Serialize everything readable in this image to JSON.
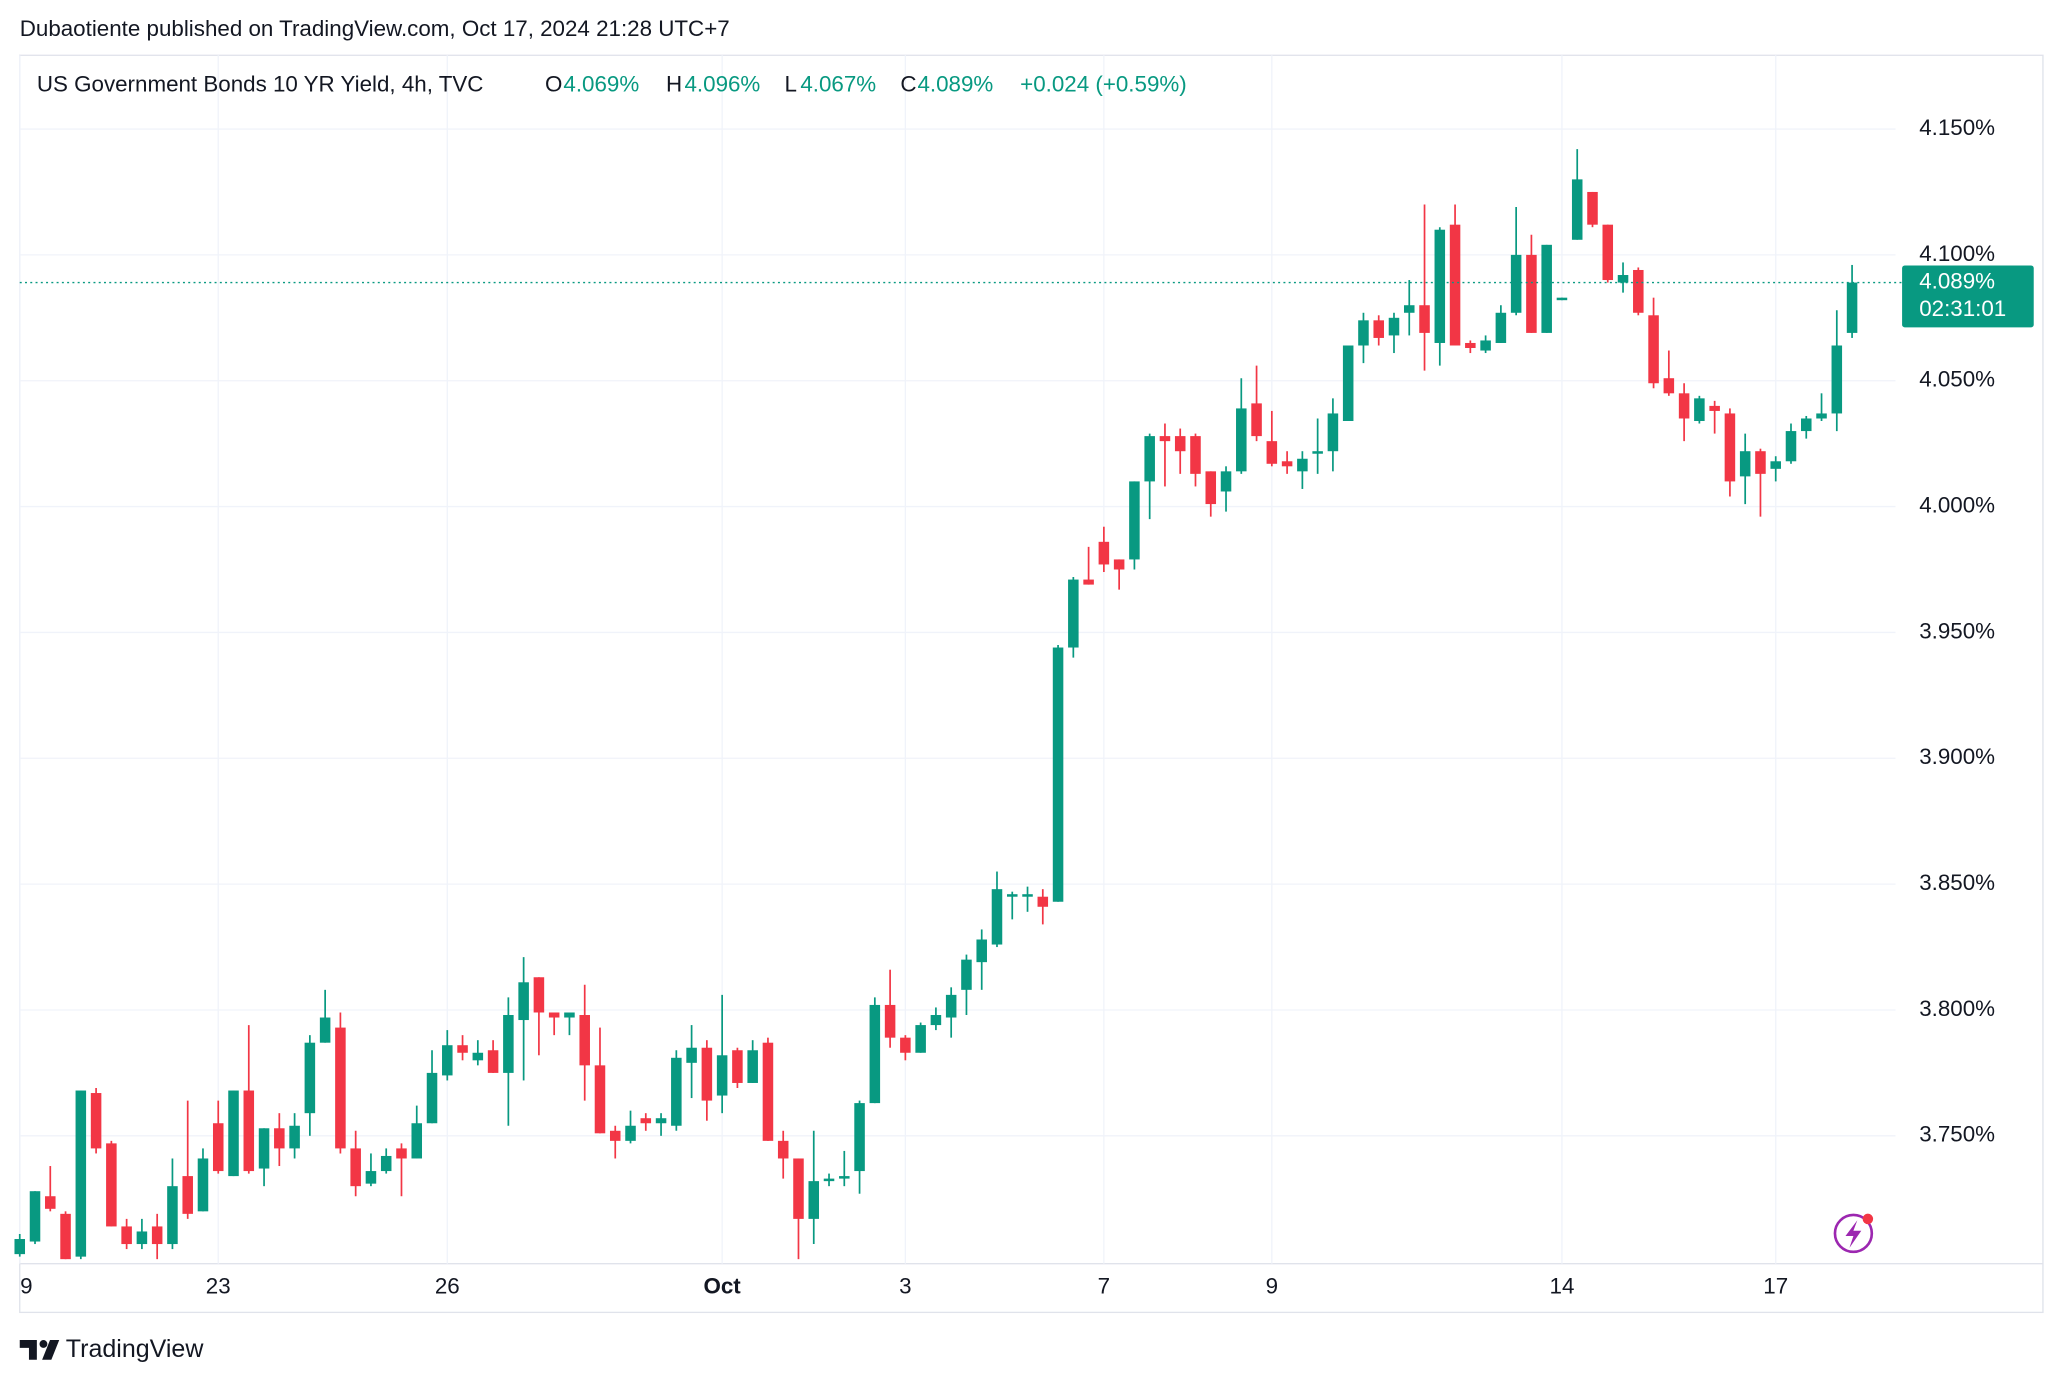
{
  "published": "Dubaotiente published on TradingView.com, Oct 17, 2024 21:28 UTC+7",
  "footer_brand": "TradingView",
  "chart_data": {
    "type": "candlestick",
    "title": "US Government Bonds 10 YR Yield, 4h, TVC",
    "ohlc_legend": [
      {
        "key": "O",
        "text": "4.069%"
      },
      {
        "key": "H",
        "text": "4.096%"
      },
      {
        "key": "L",
        "text": "4.067%"
      },
      {
        "key": "C",
        "text": "4.089%"
      }
    ],
    "change": "+0.024 (+0.59%)",
    "last_price_label": "4.089%",
    "countdown": "02:31:01",
    "up_color": "#089981",
    "down_color": "#f23645",
    "grid": true,
    "ylim": [
      3.6992,
      4.1793
    ],
    "yticks": [
      {
        "value": 3.75,
        "label": "3.750%"
      },
      {
        "value": 3.8,
        "label": "3.800%"
      },
      {
        "value": 3.85,
        "label": "3.850%"
      },
      {
        "value": 3.9,
        "label": "3.900%"
      },
      {
        "value": 3.95,
        "label": "3.950%"
      },
      {
        "value": 4.0,
        "label": "4.000%"
      },
      {
        "value": 4.05,
        "label": "4.050%"
      },
      {
        "value": 4.1,
        "label": "4.100%"
      },
      {
        "value": 4.15,
        "label": "4.150%"
      }
    ],
    "categories": [
      "9",
      null,
      null,
      null,
      null,
      null,
      null,
      null,
      null,
      null,
      null,
      null,
      null,
      "23",
      null,
      null,
      null,
      null,
      null,
      null,
      null,
      null,
      null,
      null,
      null,
      null,
      null,
      null,
      "26",
      null,
      null,
      null,
      null,
      null,
      null,
      null,
      null,
      null,
      null,
      null,
      null,
      null,
      null,
      null,
      null,
      null,
      "Oct",
      null,
      null,
      null,
      null,
      null,
      null,
      null,
      null,
      null,
      null,
      null,
      "3",
      null,
      null,
      null,
      null,
      null,
      null,
      null,
      null,
      null,
      null,
      null,
      null,
      "7",
      null,
      null,
      null,
      null,
      null,
      null,
      null,
      null,
      null,
      null,
      "9",
      null,
      null,
      null,
      null,
      null,
      null,
      null,
      null,
      null,
      null,
      null,
      null,
      null,
      null,
      null,
      null,
      null,
      null,
      "14",
      null,
      null,
      null,
      null,
      null,
      null,
      null,
      null,
      null,
      null,
      null,
      null,
      null,
      "17",
      null,
      null,
      null,
      null,
      null
    ],
    "open": [
      3.703,
      3.708,
      3.726,
      3.719,
      3.702,
      3.767,
      3.747,
      3.714,
      3.707,
      3.714,
      3.707,
      3.734,
      3.72,
      3.755,
      3.734,
      3.768,
      3.737,
      3.753,
      3.745,
      3.759,
      3.787,
      3.793,
      3.745,
      3.731,
      3.736,
      3.745,
      3.741,
      3.755,
      3.774,
      3.786,
      3.78,
      3.784,
      3.775,
      3.796,
      3.813,
      3.799,
      3.797,
      3.798,
      3.778,
      3.752,
      3.748,
      3.757,
      3.755,
      3.754,
      3.779,
      3.785,
      3.766,
      3.784,
      3.771,
      3.787,
      3.748,
      3.741,
      3.717,
      3.732,
      3.733,
      3.736,
      3.763,
      3.802,
      3.789,
      3.783,
      3.794,
      3.797,
      3.808,
      3.819,
      3.826,
      3.845,
      3.845,
      3.845,
      3.843,
      3.944,
      3.971,
      3.986,
      3.979,
      3.979,
      4.01,
      4.028,
      4.028,
      4.028,
      4.014,
      4.006,
      4.014,
      4.041,
      4.026,
      4.018,
      4.014,
      4.021,
      4.022,
      4.034,
      4.064,
      4.074,
      4.068,
      4.077,
      4.08,
      4.065,
      4.112,
      4.065,
      4.062,
      4.065,
      4.077,
      4.1,
      4.069,
      4.082,
      4.106,
      4.125,
      4.112,
      4.089,
      4.094,
      4.076,
      4.051,
      4.045,
      4.034,
      4.04,
      4.037,
      4.012,
      4.022,
      4.015,
      4.018,
      4.03,
      4.035,
      4.037,
      4.069
    ],
    "high": [
      3.711,
      3.728,
      3.738,
      3.72,
      3.768,
      3.769,
      3.748,
      3.717,
      3.717,
      3.719,
      3.741,
      3.764,
      3.745,
      3.764,
      3.768,
      3.794,
      3.753,
      3.759,
      3.759,
      3.79,
      3.808,
      3.799,
      3.752,
      3.743,
      3.745,
      3.747,
      3.762,
      3.784,
      3.792,
      3.79,
      3.788,
      3.788,
      3.805,
      3.821,
      3.813,
      3.799,
      3.799,
      3.81,
      3.793,
      3.754,
      3.76,
      3.759,
      3.759,
      3.784,
      3.794,
      3.788,
      3.806,
      3.785,
      3.788,
      3.789,
      3.752,
      3.741,
      3.752,
      3.735,
      3.744,
      3.764,
      3.805,
      3.816,
      3.79,
      3.795,
      3.801,
      3.809,
      3.822,
      3.832,
      3.855,
      3.847,
      3.849,
      3.848,
      3.945,
      3.972,
      3.984,
      3.992,
      3.979,
      4.01,
      4.029,
      4.033,
      4.031,
      4.029,
      4.014,
      4.016,
      4.051,
      4.056,
      4.038,
      4.022,
      4.022,
      4.035,
      4.043,
      4.064,
      4.077,
      4.076,
      4.077,
      4.09,
      4.12,
      4.111,
      4.12,
      4.066,
      4.068,
      4.08,
      4.119,
      4.108,
      4.104,
      4.083,
      4.142,
      4.125,
      4.112,
      4.097,
      4.095,
      4.083,
      4.062,
      4.049,
      4.044,
      4.042,
      4.039,
      4.029,
      4.023,
      4.02,
      4.033,
      4.036,
      4.045,
      4.078,
      4.096
    ],
    "low": [
      3.702,
      3.707,
      3.72,
      3.701,
      3.701,
      3.743,
      3.714,
      3.705,
      3.705,
      3.701,
      3.705,
      3.717,
      3.72,
      3.735,
      3.734,
      3.735,
      3.73,
      3.738,
      3.741,
      3.75,
      3.787,
      3.743,
      3.726,
      3.73,
      3.735,
      3.726,
      3.741,
      3.755,
      3.772,
      3.78,
      3.778,
      3.775,
      3.754,
      3.772,
      3.782,
      3.79,
      3.79,
      3.764,
      3.751,
      3.741,
      3.747,
      3.752,
      3.75,
      3.752,
      3.765,
      3.756,
      3.759,
      3.769,
      3.771,
      3.748,
      3.733,
      3.701,
      3.707,
      3.73,
      3.73,
      3.727,
      3.763,
      3.785,
      3.78,
      3.783,
      3.792,
      3.789,
      3.798,
      3.808,
      3.825,
      3.836,
      3.839,
      3.834,
      3.843,
      3.94,
      3.969,
      3.974,
      3.967,
      3.975,
      3.995,
      4.008,
      4.013,
      4.008,
      3.996,
      3.998,
      4.013,
      4.026,
      4.016,
      4.013,
      4.007,
      4.013,
      4.014,
      4.034,
      4.057,
      4.064,
      4.061,
      4.068,
      4.054,
      4.056,
      4.064,
      4.061,
      4.061,
      4.065,
      4.076,
      4.069,
      4.069,
      4.082,
      4.106,
      4.111,
      4.089,
      4.085,
      4.076,
      4.047,
      4.044,
      4.026,
      4.033,
      4.029,
      4.004,
      4.001,
      3.996,
      4.01,
      4.017,
      4.027,
      4.034,
      4.03,
      4.067
    ],
    "close": [
      3.709,
      3.728,
      3.721,
      3.701,
      3.768,
      3.745,
      3.714,
      3.707,
      3.712,
      3.707,
      3.73,
      3.719,
      3.741,
      3.736,
      3.768,
      3.736,
      3.753,
      3.745,
      3.754,
      3.787,
      3.797,
      3.745,
      3.73,
      3.736,
      3.742,
      3.741,
      3.755,
      3.775,
      3.786,
      3.783,
      3.783,
      3.775,
      3.798,
      3.811,
      3.799,
      3.797,
      3.799,
      3.778,
      3.751,
      3.748,
      3.754,
      3.755,
      3.757,
      3.781,
      3.785,
      3.764,
      3.782,
      3.771,
      3.784,
      3.748,
      3.741,
      3.717,
      3.732,
      3.733,
      3.734,
      3.763,
      3.802,
      3.789,
      3.783,
      3.794,
      3.798,
      3.806,
      3.82,
      3.828,
      3.848,
      3.846,
      3.846,
      3.841,
      3.944,
      3.971,
      3.969,
      3.977,
      3.975,
      4.01,
      4.028,
      4.026,
      4.022,
      4.013,
      4.001,
      4.014,
      4.039,
      4.028,
      4.017,
      4.016,
      4.019,
      4.022,
      4.037,
      4.064,
      4.074,
      4.067,
      4.075,
      4.08,
      4.069,
      4.11,
      4.064,
      4.063,
      4.066,
      4.077,
      4.1,
      4.069,
      4.104,
      4.083,
      4.13,
      4.112,
      4.09,
      4.092,
      4.077,
      4.049,
      4.045,
      4.035,
      4.043,
      4.038,
      4.01,
      4.022,
      4.013,
      4.018,
      4.03,
      4.035,
      4.037,
      4.064,
      4.089
    ]
  }
}
